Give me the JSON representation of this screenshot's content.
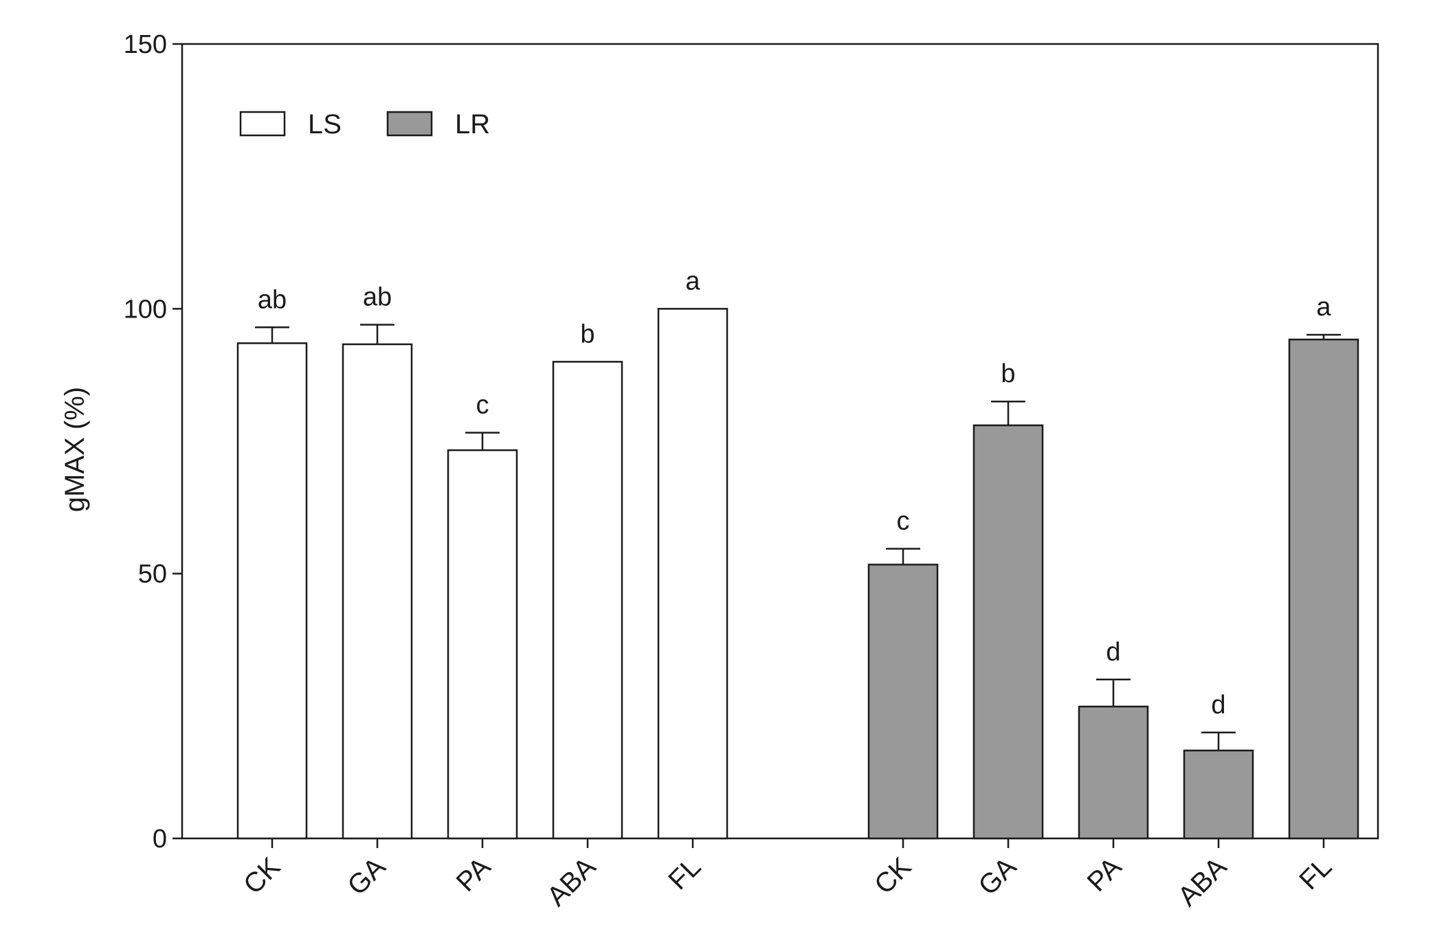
{
  "chart_data": {
    "type": "bar",
    "ylabel": "gMAX (%)",
    "xlabel": "",
    "ylim": [
      0,
      150
    ],
    "yticks": [
      0,
      50,
      100,
      150
    ],
    "grid": false,
    "legend_position": "top-left",
    "series": [
      {
        "name": "LS",
        "color": "#ffffff",
        "categories": [
          "CK",
          "GA",
          "PA",
          "ABA",
          "FL"
        ],
        "values": [
          93.5,
          93.3,
          73.3,
          90.0,
          100.0
        ],
        "errors": [
          3.0,
          3.7,
          3.3,
          0,
          0
        ],
        "significance": [
          "ab",
          "ab",
          "c",
          "b",
          "a"
        ]
      },
      {
        "name": "LR",
        "color": "#999999",
        "categories": [
          "CK",
          "GA",
          "PA",
          "ABA",
          "FL"
        ],
        "values": [
          51.7,
          78.0,
          24.9,
          16.6,
          94.2
        ],
        "errors": [
          3.0,
          4.5,
          5.1,
          3.4,
          0.9
        ],
        "significance": [
          "c",
          "b",
          "d",
          "d",
          "a"
        ]
      }
    ]
  }
}
